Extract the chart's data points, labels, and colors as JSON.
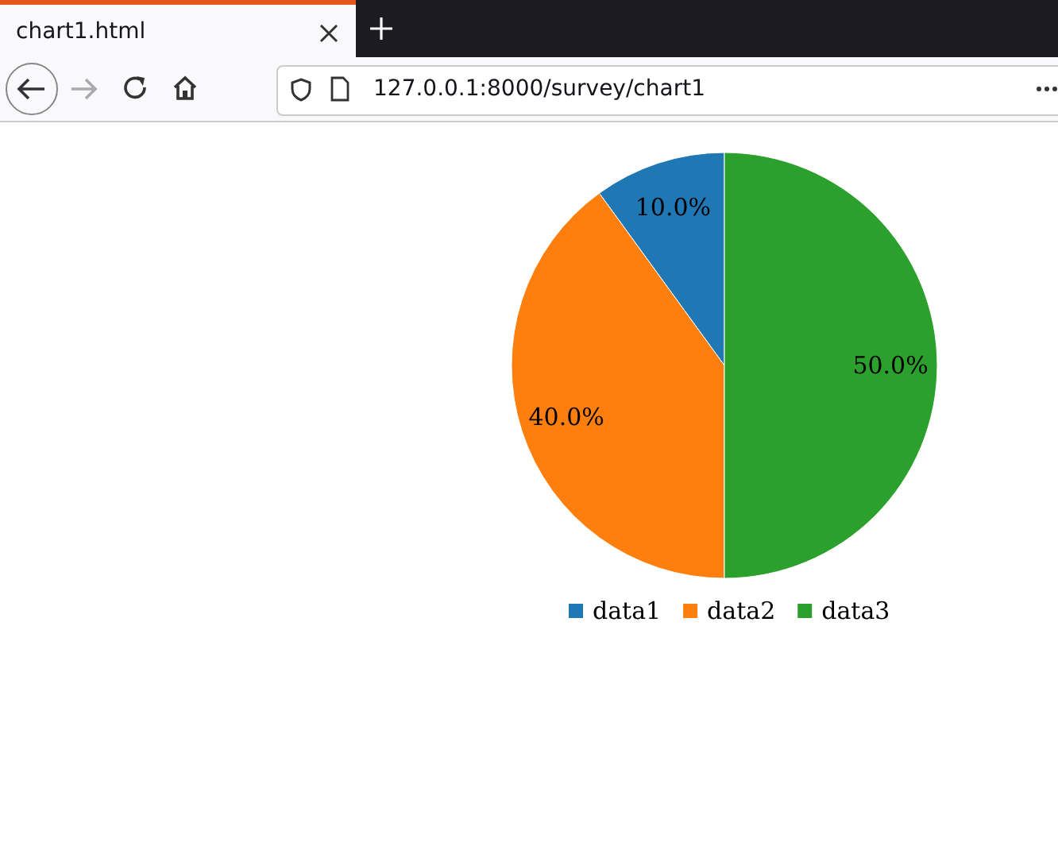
{
  "chart_data": {
    "type": "pie",
    "categories": [
      "data1",
      "data2",
      "data3"
    ],
    "values": [
      10,
      40,
      50
    ],
    "value_labels": [
      "10.0%",
      "40.0%",
      "50.0%"
    ],
    "colors": [
      "#1f77b4",
      "#ff7f0e",
      "#2ca02c"
    ],
    "legend": "bottom",
    "annotations": [
      "chart1.html",
      "127.0.0.1:8000/survey/chart1"
    ]
  }
}
